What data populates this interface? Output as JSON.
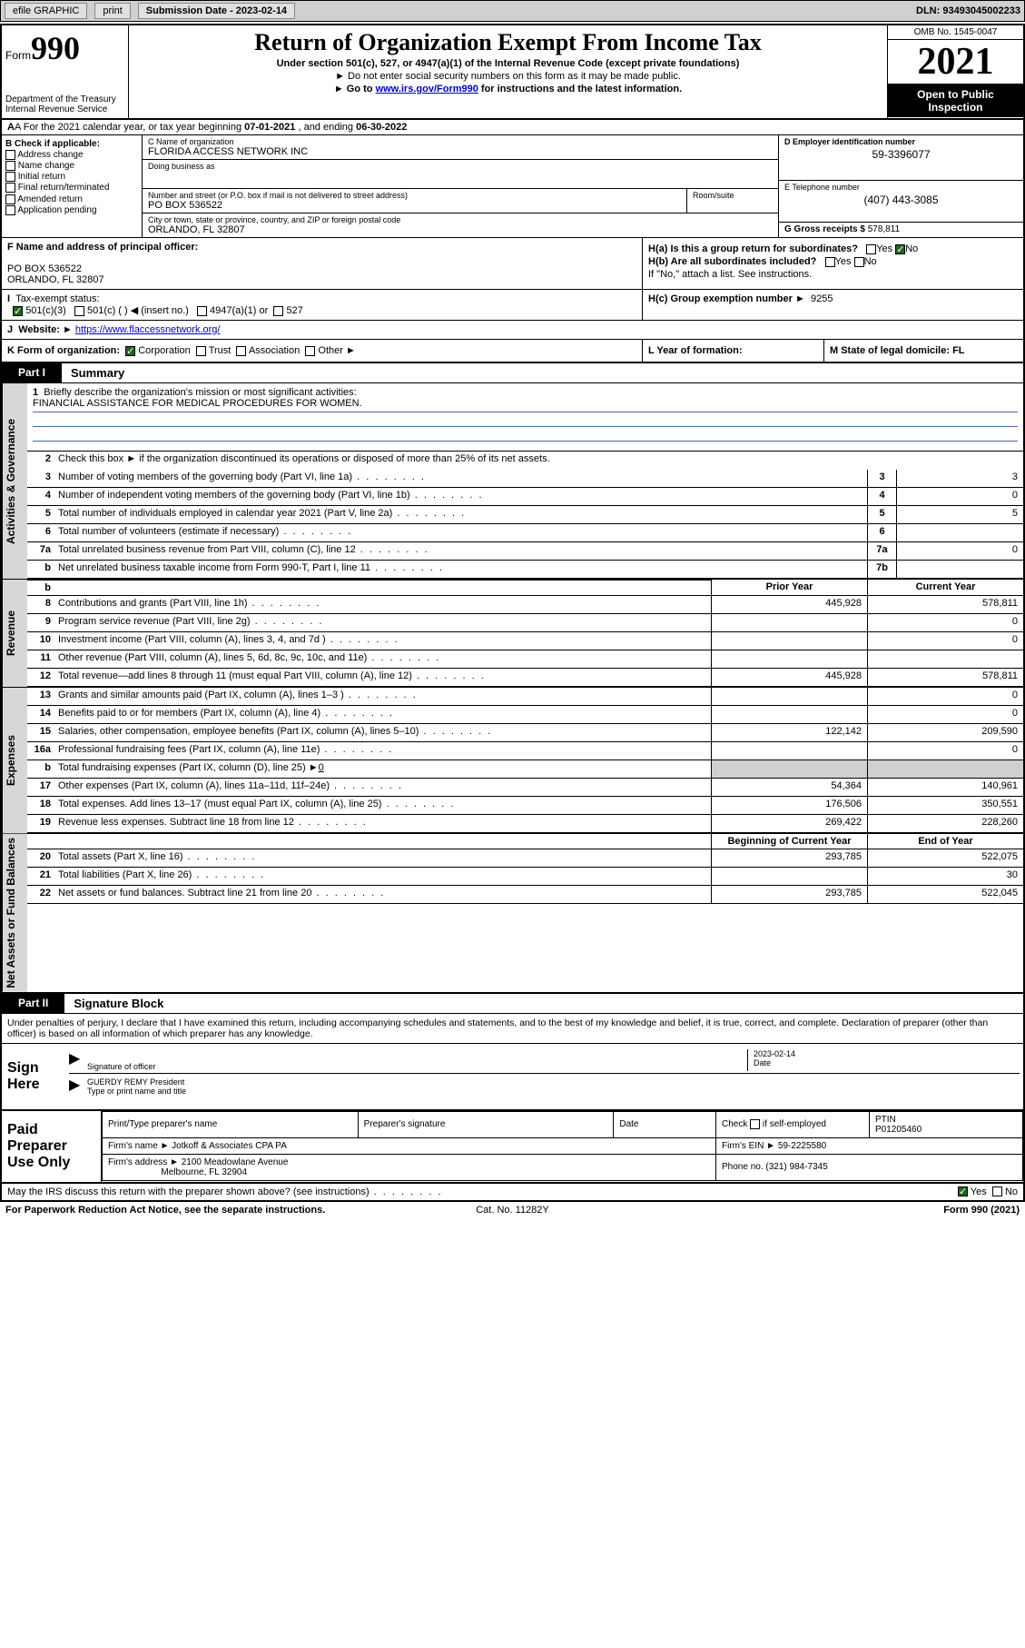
{
  "topbar": {
    "efile": "efile GRAPHIC",
    "print": "print",
    "subdate_label": "Submission Date - 2023-02-14",
    "dln": "DLN: 93493045002233"
  },
  "header": {
    "form_word": "Form",
    "form_num": "990",
    "dept": "Department of the Treasury",
    "irs": "Internal Revenue Service",
    "title": "Return of Organization Exempt From Income Tax",
    "subtitle": "Under section 501(c), 527, or 4947(a)(1) of the Internal Revenue Code (except private foundations)",
    "note1": "Do not enter social security numbers on this form as it may be made public.",
    "note2_pre": "Go to ",
    "note2_link": "www.irs.gov/Form990",
    "note2_post": " for instructions and the latest information.",
    "omb": "OMB No. 1545-0047",
    "year": "2021",
    "inspect": "Open to Public Inspection"
  },
  "row_a": {
    "text_pre": "A For the 2021 calendar year, or tax year beginning ",
    "begin": "07-01-2021",
    "mid": " , and ending ",
    "end": "06-30-2022"
  },
  "section_b": {
    "label": "B Check if applicable:",
    "opts": [
      "Address change",
      "Name change",
      "Initial return",
      "Final return/terminated",
      "Amended return",
      "Application pending"
    ]
  },
  "section_c": {
    "name_label": "C Name of organization",
    "name": "FLORIDA ACCESS NETWORK INC",
    "dba_label": "Doing business as",
    "dba": "",
    "addr_label": "Number and street (or P.O. box if mail is not delivered to street address)",
    "room_label": "Room/suite",
    "addr": "PO BOX 536522",
    "city_label": "City or town, state or province, country, and ZIP or foreign postal code",
    "city": "ORLANDO, FL  32807"
  },
  "section_d": {
    "label": "D Employer identification number",
    "val": "59-3396077"
  },
  "section_e": {
    "label": "E Telephone number",
    "val": "(407) 443-3085"
  },
  "section_g": {
    "label": "G Gross receipts $",
    "val": "578,811"
  },
  "section_f": {
    "label": "F Name and address of principal officer:",
    "line1": "PO BOX 536522",
    "line2": "ORLANDO, FL  32807"
  },
  "section_h": {
    "a": "H(a)  Is this a group return for subordinates?",
    "a_yes": "Yes",
    "a_no": "No",
    "b": "H(b)  Are all subordinates included?",
    "b_yes": "Yes",
    "b_no": "No",
    "b_note": "If \"No,\" attach a list. See instructions.",
    "c_label": "H(c)  Group exemption number ►",
    "c_val": "9255"
  },
  "section_i": {
    "label": "Tax-exempt status:",
    "o1": "501(c)(3)",
    "o2": "501(c) (  ) ◀ (insert no.)",
    "o3": "4947(a)(1) or",
    "o4": "527"
  },
  "section_j": {
    "label": "Website: ►",
    "val": "https://www.flaccessnetwork.org/"
  },
  "section_k": {
    "label": "K Form of organization:",
    "o1": "Corporation",
    "o2": "Trust",
    "o3": "Association",
    "o4": "Other ►"
  },
  "section_l": {
    "label": "L Year of formation:",
    "val": ""
  },
  "section_m": {
    "label": "M State of legal domicile: FL"
  },
  "part1": {
    "tab": "Part I",
    "title": "Summary",
    "line1_label": "Briefly describe the organization's mission or most significant activities:",
    "line1_val": "FINANCIAL ASSISTANCE FOR MEDICAL PROCEDURES FOR WOMEN.",
    "line2": "Check this box ►  if the organization discontinued its operations or disposed of more than 25% of its net assets.",
    "prior_hdr": "Prior Year",
    "curr_hdr": "Current Year",
    "begin_hdr": "Beginning of Current Year",
    "end_hdr": "End of Year",
    "fund_exp_label": "Total fundraising expenses (Part IX, column (D), line 25) ►",
    "fund_exp_val": "0"
  },
  "summary_rows_gov": [
    {
      "n": "3",
      "t": "Number of voting members of the governing body (Part VI, line 1a)",
      "box": "3",
      "v": "3"
    },
    {
      "n": "4",
      "t": "Number of independent voting members of the governing body (Part VI, line 1b)",
      "box": "4",
      "v": "0"
    },
    {
      "n": "5",
      "t": "Total number of individuals employed in calendar year 2021 (Part V, line 2a)",
      "box": "5",
      "v": "5"
    },
    {
      "n": "6",
      "t": "Total number of volunteers (estimate if necessary)",
      "box": "6",
      "v": ""
    },
    {
      "n": "7a",
      "t": "Total unrelated business revenue from Part VIII, column (C), line 12",
      "box": "7a",
      "v": "0"
    },
    {
      "n": "b",
      "t": "Net unrelated business taxable income from Form 990-T, Part I, line 11",
      "box": "7b",
      "v": ""
    }
  ],
  "summary_rows_rev": [
    {
      "n": "8",
      "t": "Contributions and grants (Part VIII, line 1h)",
      "p": "445,928",
      "c": "578,811"
    },
    {
      "n": "9",
      "t": "Program service revenue (Part VIII, line 2g)",
      "p": "",
      "c": "0"
    },
    {
      "n": "10",
      "t": "Investment income (Part VIII, column (A), lines 3, 4, and 7d )",
      "p": "",
      "c": "0"
    },
    {
      "n": "11",
      "t": "Other revenue (Part VIII, column (A), lines 5, 6d, 8c, 9c, 10c, and 11e)",
      "p": "",
      "c": ""
    },
    {
      "n": "12",
      "t": "Total revenue—add lines 8 through 11 (must equal Part VIII, column (A), line 12)",
      "p": "445,928",
      "c": "578,811"
    }
  ],
  "summary_rows_exp": [
    {
      "n": "13",
      "t": "Grants and similar amounts paid (Part IX, column (A), lines 1–3 )",
      "p": "",
      "c": "0"
    },
    {
      "n": "14",
      "t": "Benefits paid to or for members (Part IX, column (A), line 4)",
      "p": "",
      "c": "0"
    },
    {
      "n": "15",
      "t": "Salaries, other compensation, employee benefits (Part IX, column (A), lines 5–10)",
      "p": "122,142",
      "c": "209,590"
    },
    {
      "n": "16a",
      "t": "Professional fundraising fees (Part IX, column (A), line 11e)",
      "p": "",
      "c": "0"
    },
    {
      "n": "17",
      "t": "Other expenses (Part IX, column (A), lines 11a–11d, 11f–24e)",
      "p": "54,364",
      "c": "140,961"
    },
    {
      "n": "18",
      "t": "Total expenses. Add lines 13–17 (must equal Part IX, column (A), line 25)",
      "p": "176,506",
      "c": "350,551"
    },
    {
      "n": "19",
      "t": "Revenue less expenses. Subtract line 18 from line 12",
      "p": "269,422",
      "c": "228,260"
    }
  ],
  "summary_rows_net": [
    {
      "n": "20",
      "t": "Total assets (Part X, line 16)",
      "p": "293,785",
      "c": "522,075"
    },
    {
      "n": "21",
      "t": "Total liabilities (Part X, line 26)",
      "p": "",
      "c": "30"
    },
    {
      "n": "22",
      "t": "Net assets or fund balances. Subtract line 21 from line 20",
      "p": "293,785",
      "c": "522,045"
    }
  ],
  "vtabs": {
    "gov": "Activities & Governance",
    "rev": "Revenue",
    "exp": "Expenses",
    "net": "Net Assets or Fund Balances"
  },
  "part2": {
    "tab": "Part II",
    "title": "Signature Block",
    "declaration": "Under penalties of perjury, I declare that I have examined this return, including accompanying schedules and statements, and to the best of my knowledge and belief, it is true, correct, and complete. Declaration of preparer (other than officer) is based on all information of which preparer has any knowledge.",
    "sign_here": "Sign Here",
    "sig_officer": "Signature of officer",
    "sig_date": "2023-02-14",
    "date_label": "Date",
    "officer_name": "GUERDY REMY President",
    "type_name": "Type or print name and title"
  },
  "paid": {
    "label": "Paid Preparer Use Only",
    "h1": "Print/Type preparer's name",
    "h2": "Preparer's signature",
    "h3": "Date",
    "h4_a": "Check",
    "h4_b": "if self-employed",
    "h5": "PTIN",
    "ptin": "P01205460",
    "firm_name_l": "Firm's name    ►",
    "firm_name": "Jotkoff & Associates CPA PA",
    "firm_ein_l": "Firm's EIN ►",
    "firm_ein": "59-2225580",
    "firm_addr_l": "Firm's address ►",
    "firm_addr1": "2100 Meadowlane Avenue",
    "firm_addr2": "Melbourne, FL  32904",
    "phone_l": "Phone no.",
    "phone": "(321) 984-7345"
  },
  "footer": {
    "discuss": "May the IRS discuss this return with the preparer shown above? (see instructions)",
    "yes": "Yes",
    "no": "No",
    "pra": "For Paperwork Reduction Act Notice, see the separate instructions.",
    "cat": "Cat. No. 11282Y",
    "form": "Form 990 (2021)"
  },
  "colors": {
    "link": "#0000cc",
    "shade": "#d7d7d7",
    "check_green": "#1a6a1a"
  }
}
